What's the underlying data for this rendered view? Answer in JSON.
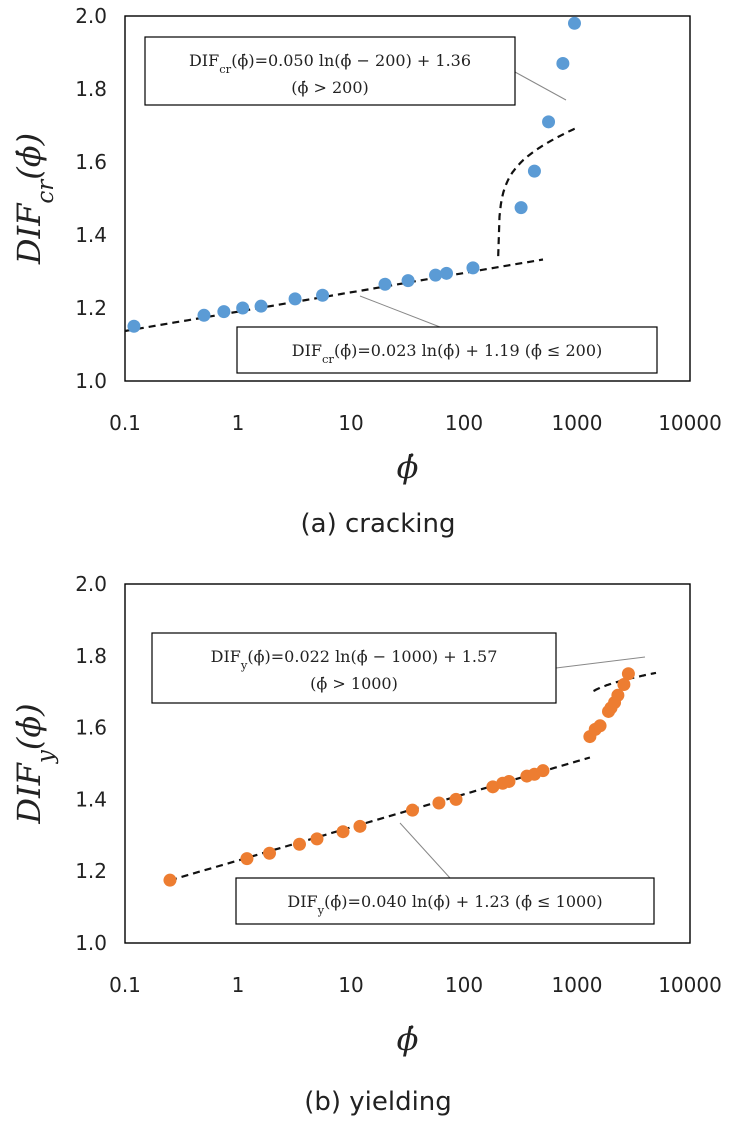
{
  "chart_data": [
    {
      "type": "scatter",
      "caption": "(a) cracking",
      "xlabel": "ϕ̇",
      "ylabel": "DIF_cr(ϕ̇)",
      "xscale": "log",
      "xlim": [
        0.1,
        10000
      ],
      "ylim": [
        1.0,
        2.0
      ],
      "xticks": [
        "0.1",
        "1",
        "10",
        "100",
        "1000",
        "10000"
      ],
      "yticks": [
        "1.0",
        "1.2",
        "1.4",
        "1.6",
        "1.8",
        "2.0"
      ],
      "marker_color": "#5b9bd5",
      "points": [
        {
          "x": 0.12,
          "y": 1.15
        },
        {
          "x": 0.5,
          "y": 1.18
        },
        {
          "x": 0.75,
          "y": 1.19
        },
        {
          "x": 1.1,
          "y": 1.2
        },
        {
          "x": 1.6,
          "y": 1.205
        },
        {
          "x": 3.2,
          "y": 1.225
        },
        {
          "x": 5.6,
          "y": 1.235
        },
        {
          "x": 20,
          "y": 1.265
        },
        {
          "x": 32,
          "y": 1.275
        },
        {
          "x": 56,
          "y": 1.29
        },
        {
          "x": 70,
          "y": 1.295
        },
        {
          "x": 120,
          "y": 1.31
        },
        {
          "x": 320,
          "y": 1.475
        },
        {
          "x": 420,
          "y": 1.575
        },
        {
          "x": 560,
          "y": 1.71
        },
        {
          "x": 750,
          "y": 1.87
        },
        {
          "x": 950,
          "y": 1.98
        }
      ],
      "fits": [
        {
          "label": "≤200",
          "a": 0.023,
          "b": 1.19,
          "shift": 0,
          "x_from": 0.1,
          "x_to": 500
        },
        {
          "label": ">200",
          "a": 0.05,
          "b": 1.36,
          "shift": 200,
          "x_from": 200.7,
          "x_to": 1000
        }
      ],
      "equations": [
        {
          "pos": "top-left",
          "line1": "DIF_cr(ϕ̇)=0.050 ln(ϕ̇ − 200) + 1.36",
          "line2": "(ϕ̇ > 200)"
        },
        {
          "pos": "bottom-right",
          "line1": "DIF_cr(ϕ̇)=0.023 ln(ϕ̇) + 1.19  (ϕ̇ ≤ 200)"
        }
      ]
    },
    {
      "type": "scatter",
      "caption": "(b) yielding",
      "xlabel": "ϕ̇",
      "ylabel": "DIF_y(ϕ̇)",
      "xscale": "log",
      "xlim": [
        0.1,
        10000
      ],
      "ylim": [
        1.0,
        2.0
      ],
      "xticks": [
        "0.1",
        "1",
        "10",
        "100",
        "1000",
        "10000"
      ],
      "yticks": [
        "1.0",
        "1.2",
        "1.4",
        "1.6",
        "1.8",
        "2.0"
      ],
      "marker_color": "#ed7d31",
      "points": [
        {
          "x": 0.25,
          "y": 1.175
        },
        {
          "x": 1.2,
          "y": 1.235
        },
        {
          "x": 1.9,
          "y": 1.25
        },
        {
          "x": 3.5,
          "y": 1.275
        },
        {
          "x": 5,
          "y": 1.29
        },
        {
          "x": 8.5,
          "y": 1.31
        },
        {
          "x": 12,
          "y": 1.325
        },
        {
          "x": 35,
          "y": 1.37
        },
        {
          "x": 60,
          "y": 1.39
        },
        {
          "x": 85,
          "y": 1.4
        },
        {
          "x": 180,
          "y": 1.435
        },
        {
          "x": 220,
          "y": 1.445
        },
        {
          "x": 250,
          "y": 1.45
        },
        {
          "x": 360,
          "y": 1.465
        },
        {
          "x": 420,
          "y": 1.47
        },
        {
          "x": 500,
          "y": 1.48
        },
        {
          "x": 1300,
          "y": 1.575
        },
        {
          "x": 1450,
          "y": 1.595
        },
        {
          "x": 1600,
          "y": 1.605
        },
        {
          "x": 1900,
          "y": 1.645
        },
        {
          "x": 2000,
          "y": 1.655
        },
        {
          "x": 2150,
          "y": 1.67
        },
        {
          "x": 2300,
          "y": 1.69
        },
        {
          "x": 2600,
          "y": 1.72
        },
        {
          "x": 2850,
          "y": 1.75
        }
      ],
      "fits": [
        {
          "label": "≤1000",
          "a": 0.04,
          "b": 1.23,
          "shift": 0,
          "x_from": 0.25,
          "x_to": 1300
        },
        {
          "label": ">1000",
          "a": 0.022,
          "b": 1.57,
          "shift": 1000,
          "x_from": 1400,
          "x_to": 5000
        }
      ],
      "equations": [
        {
          "pos": "top-left",
          "line1": "DIF_y(ϕ̇)=0.022 ln(ϕ̇ − 1000) + 1.57",
          "line2": "(ϕ̇ > 1000)"
        },
        {
          "pos": "bottom-right",
          "line1": "DIF_y(ϕ̇)=0.040 ln(ϕ̇) + 1.23  (ϕ̇ ≤ 1000)"
        }
      ]
    }
  ]
}
